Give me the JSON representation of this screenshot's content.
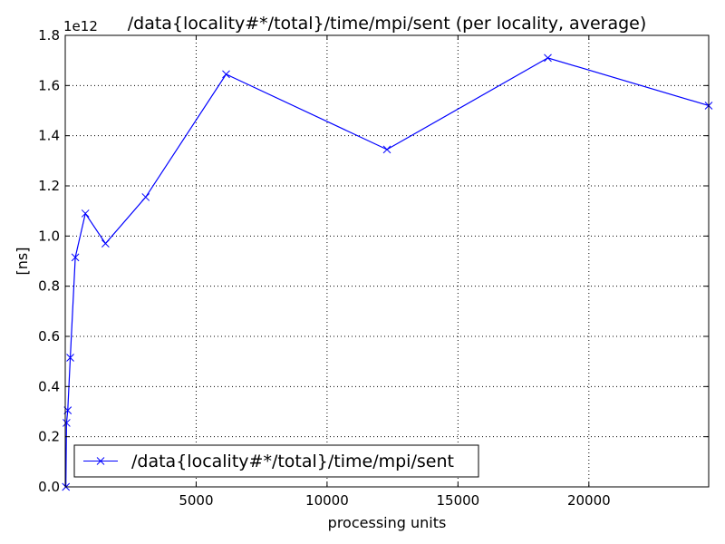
{
  "chart_data": {
    "type": "line",
    "title": "/data{locality#*/total}/time/mpi/sent (per locality, average)",
    "xlabel": "processing units",
    "ylabel": "[ns]",
    "y_multiplier_label": "1e12",
    "xlim": [
      0,
      24576
    ],
    "ylim": [
      0,
      1.8
    ],
    "x_ticks": [
      5000,
      10000,
      15000,
      20000
    ],
    "x_tick_labels": [
      "5000",
      "10000",
      "15000",
      "20000"
    ],
    "y_ticks": [
      0.0,
      0.2,
      0.4,
      0.6,
      0.8,
      1.0,
      1.2,
      1.4,
      1.6,
      1.8
    ],
    "y_tick_labels": [
      "0.0",
      "0.2",
      "0.4",
      "0.6",
      "0.8",
      "1.0",
      "1.2",
      "1.4",
      "1.6",
      "1.8"
    ],
    "grid": true,
    "legend_position": "lower-left",
    "series": [
      {
        "name": "/data{locality#*/total}/time/mpi/sent",
        "color": "#0000ff",
        "marker": "x",
        "x": [
          24,
          48,
          96,
          192,
          384,
          768,
          1536,
          3072,
          6144,
          12288,
          18432,
          24576
        ],
        "y": [
          0.0,
          0.255,
          0.305,
          0.515,
          0.915,
          1.09,
          0.97,
          1.155,
          1.645,
          1.345,
          1.71,
          1.52
        ]
      }
    ]
  }
}
